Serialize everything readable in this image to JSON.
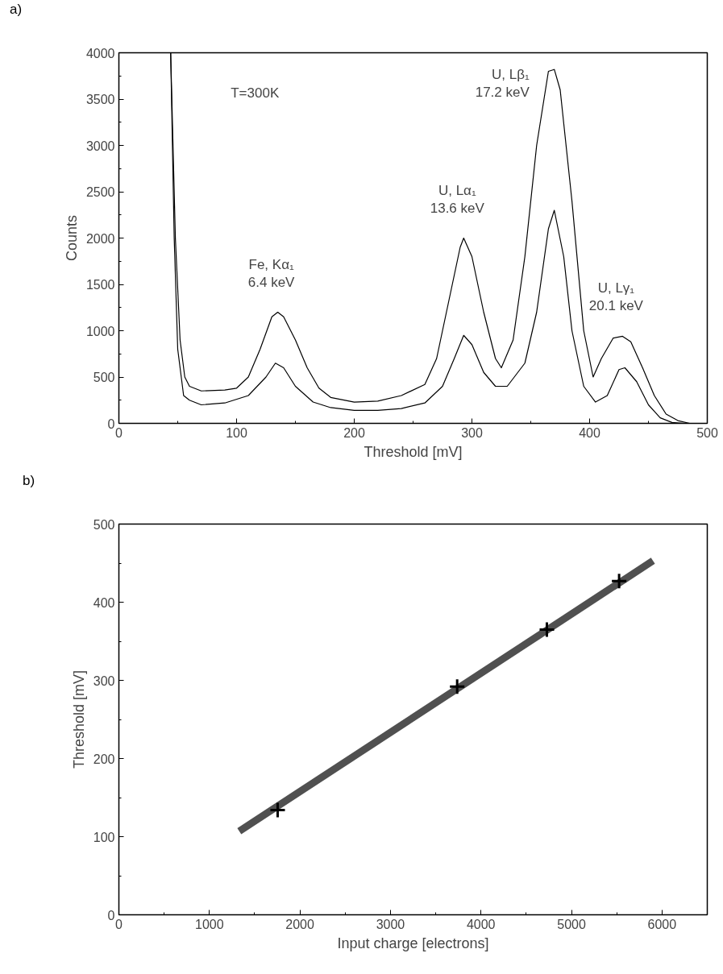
{
  "chart_data": [
    {
      "type": "line",
      "xlabel": "Threshold [mV]",
      "ylabel": "Counts",
      "xlim": [
        0,
        500
      ],
      "xticks": [
        0,
        100,
        200,
        300,
        400,
        500
      ],
      "ylim": [
        0,
        4000
      ],
      "yticks": [
        0,
        500,
        1000,
        1500,
        2000,
        2500,
        3000,
        3500,
        4000
      ],
      "grid": false,
      "line_style": "solid",
      "annotations": [
        "a)",
        "T=300K",
        {
          "text": "Fe, Kα₁\n6.4 keV",
          "x": 135,
          "y": 1200
        },
        {
          "text": "U, Lα₁\n13.6 keV",
          "x": 293,
          "y": 2000
        },
        {
          "text": "U, Lβ₁\n17.2 keV",
          "x": 368,
          "y": 3820
        },
        {
          "text": "U, Lγ₁\n20.1 keV",
          "x": 428,
          "y": 940
        }
      ],
      "series": [
        {
          "color": "#000000",
          "x": [
            44,
            48,
            52,
            56,
            60,
            70,
            90,
            100,
            110,
            120,
            130,
            135,
            140,
            150,
            160,
            170,
            180,
            200,
            220,
            240,
            260,
            270,
            280,
            290,
            293,
            300,
            310,
            320,
            325,
            335,
            345,
            355,
            365,
            370,
            375,
            385,
            395,
            403,
            410,
            420,
            428,
            435,
            445,
            455,
            465,
            475,
            485
          ],
          "values": [
            4000,
            2000,
            900,
            500,
            400,
            350,
            360,
            380,
            500,
            800,
            1150,
            1200,
            1150,
            900,
            600,
            380,
            280,
            230,
            240,
            300,
            420,
            700,
            1300,
            1900,
            2000,
            1800,
            1200,
            700,
            600,
            900,
            1800,
            3000,
            3800,
            3820,
            3600,
            2400,
            1000,
            500,
            700,
            920,
            940,
            880,
            600,
            300,
            100,
            30,
            0
          ]
        },
        {
          "color": "#000000",
          "x": [
            44,
            47,
            50,
            55,
            60,
            70,
            90,
            110,
            125,
            133,
            140,
            150,
            165,
            180,
            200,
            220,
            240,
            260,
            275,
            285,
            293,
            300,
            310,
            320,
            330,
            345,
            355,
            365,
            370,
            378,
            385,
            395,
            405,
            415,
            425,
            430,
            440,
            450,
            460,
            470,
            480
          ],
          "values": [
            4000,
            2000,
            800,
            300,
            250,
            200,
            220,
            300,
            500,
            650,
            600,
            400,
            230,
            170,
            140,
            140,
            160,
            220,
            400,
            700,
            950,
            850,
            550,
            400,
            400,
            650,
            1200,
            2100,
            2300,
            1800,
            1000,
            400,
            230,
            300,
            580,
            600,
            450,
            200,
            60,
            10,
            0
          ]
        }
      ]
    },
    {
      "type": "scatter",
      "xlabel": "Input charge [electrons]",
      "ylabel": "Threshold [mV]",
      "xlim": [
        0,
        6500
      ],
      "xticks": [
        0,
        1000,
        2000,
        3000,
        4000,
        5000,
        6000
      ],
      "ylim": [
        0,
        500
      ],
      "yticks": [
        0,
        100,
        200,
        300,
        400,
        500
      ],
      "grid": false,
      "annotations": [
        "b)"
      ],
      "series": [
        {
          "type": "scatter",
          "marker": "cross",
          "color": "#000000",
          "x": [
            1754,
            3737,
            4728,
            5526
          ],
          "values": [
            134,
            292,
            365,
            427
          ]
        },
        {
          "type": "line",
          "color": "#505050",
          "x": [
            1330,
            5900
          ],
          "values": [
            107,
            453
          ]
        }
      ]
    }
  ]
}
